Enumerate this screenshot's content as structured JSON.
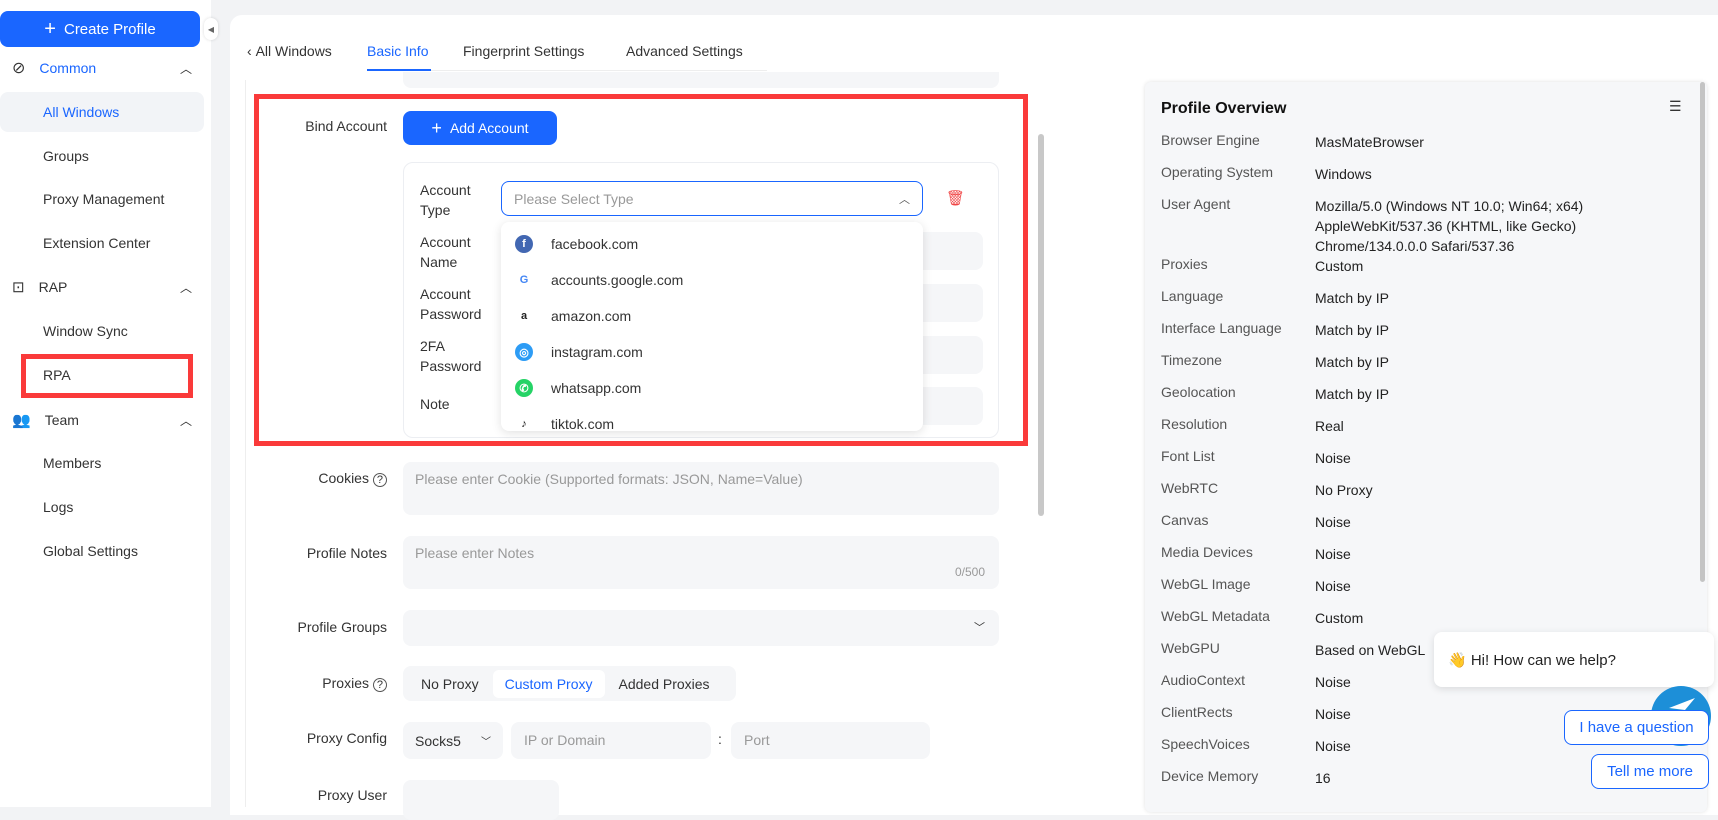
{
  "sidebar": {
    "create_profile": "Create Profile",
    "sections": [
      {
        "label": "Common",
        "icon": "globe-icon",
        "items": [
          "All Windows",
          "Groups",
          "Proxy Management",
          "Extension Center"
        ]
      },
      {
        "label": "RAP",
        "icon": "robot-icon",
        "items": [
          "Window Sync",
          "RPA"
        ]
      },
      {
        "label": "Team",
        "icon": "team-icon",
        "items": [
          "Members",
          "Logs",
          "Global Settings"
        ]
      }
    ],
    "active_item": "All Windows"
  },
  "tabs": {
    "back": "All Windows",
    "items": [
      "Basic Info",
      "Fingerprint Settings",
      "Advanced Settings"
    ],
    "active": "Basic Info"
  },
  "form": {
    "bind_account": {
      "label": "Bind Account",
      "add_button": "Add Account",
      "account_type": {
        "label": "Account Type",
        "placeholder": "Please Select Type"
      },
      "account_name": "Account Name",
      "account_password": "Account Password",
      "twofa_password": "2FA Password",
      "note": "Note",
      "options": [
        {
          "label": "facebook.com",
          "icon": "facebook-icon",
          "color": "#4267b2"
        },
        {
          "label": "accounts.google.com",
          "icon": "google-icon",
          "color": "#4285f4"
        },
        {
          "label": "amazon.com",
          "icon": "amazon-icon",
          "color": "#222222"
        },
        {
          "label": "instagram.com",
          "icon": "instagram-icon",
          "color": "#2d9cf5"
        },
        {
          "label": "whatsapp.com",
          "icon": "whatsapp-icon",
          "color": "#25d366"
        },
        {
          "label": "tiktok.com",
          "icon": "tiktok-icon",
          "color": "#111111"
        }
      ]
    },
    "cookies": {
      "label": "Cookies",
      "placeholder": "Please enter Cookie (Supported formats: JSON, Name=Value)"
    },
    "profile_notes": {
      "label": "Profile Notes",
      "placeholder": "Please enter Notes",
      "counter": "0/500"
    },
    "profile_groups": {
      "label": "Profile Groups"
    },
    "proxies": {
      "label": "Proxies",
      "options": [
        "No Proxy",
        "Custom Proxy",
        "Added Proxies"
      ],
      "selected": "Custom Proxy"
    },
    "proxy_config": {
      "label": "Proxy Config",
      "type": "Socks5",
      "host_placeholder": "IP or Domain",
      "separator": ":",
      "port_placeholder": "Port"
    },
    "proxy_user": {
      "label": "Proxy User"
    }
  },
  "overview": {
    "title": "Profile Overview",
    "rows": [
      [
        "Browser Engine",
        "MasMateBrowser"
      ],
      [
        "Operating System",
        "Windows"
      ],
      [
        "User Agent",
        "Mozilla/5.0 (Windows NT 10.0; Win64; x64) AppleWebKit/537.36 (KHTML, like Gecko) Chrome/134.0.0.0 Safari/537.36"
      ],
      [
        "Proxies",
        "Custom"
      ],
      [
        "Language",
        "Match by IP"
      ],
      [
        "Interface Language",
        "Match by IP"
      ],
      [
        "Timezone",
        "Match by IP"
      ],
      [
        "Geolocation",
        "Match by IP"
      ],
      [
        "Resolution",
        "Real"
      ],
      [
        "Font List",
        "Noise"
      ],
      [
        "WebRTC",
        "No Proxy"
      ],
      [
        "Canvas",
        "Noise"
      ],
      [
        "Media Devices",
        "Noise"
      ],
      [
        "WebGL Image",
        "Noise"
      ],
      [
        "WebGL Metadata",
        "Custom"
      ],
      [
        "WebGPU",
        "Based on WebGL"
      ],
      [
        "AudioContext",
        "Noise"
      ],
      [
        "ClientRects",
        "Noise"
      ],
      [
        "SpeechVoices",
        "Noise"
      ],
      [
        "Device Memory",
        "16"
      ]
    ]
  },
  "chat": {
    "greeting": "👋 Hi! How can we help?",
    "buttons": [
      "I have a question",
      "Tell me more"
    ]
  },
  "colors": {
    "accent": "#1a66ff",
    "highlight": "#fa3a3a",
    "danger": "#f04545"
  }
}
